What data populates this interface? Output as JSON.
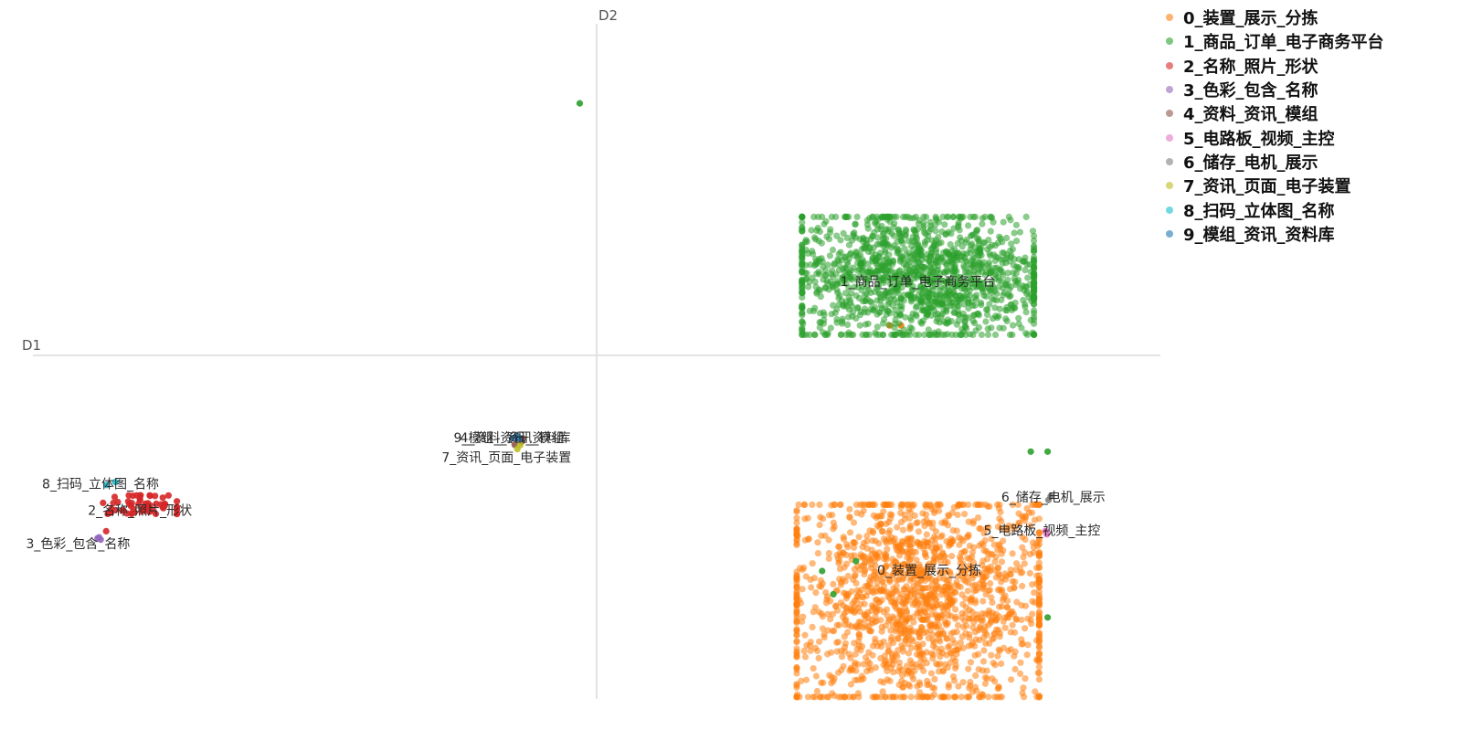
{
  "chart_data": {
    "type": "scatter",
    "xlabel": "D1",
    "ylabel": "D2",
    "xlim": [
      -1.0,
      1.0
    ],
    "ylim": [
      -1.0,
      1.0
    ],
    "grid": false,
    "legend_position": "top-right",
    "series": [
      {
        "name": "0_装置_展示_分拣",
        "color": "#ff7f0e",
        "label_at": [
          0.59,
          -0.65
        ],
        "cluster": {
          "center": [
            0.57,
            -0.74
          ],
          "spread": [
            0.23,
            0.31
          ],
          "count": 1600
        },
        "outliers": [
          [
            0.52,
            0.09
          ],
          [
            0.54,
            0.09
          ]
        ]
      },
      {
        "name": "1_商品_订单_电子商务平台",
        "color": "#2ca02c",
        "label_at": [
          0.57,
          0.22
        ],
        "cluster": {
          "center": [
            0.57,
            0.24
          ],
          "spread": [
            0.22,
            0.19
          ],
          "count": 1400
        },
        "outliers": [
          [
            -0.03,
            0.76
          ],
          [
            0.46,
            -0.62
          ],
          [
            0.4,
            -0.65
          ],
          [
            0.42,
            -0.72
          ],
          [
            0.77,
            -0.29
          ],
          [
            0.8,
            -0.29
          ],
          [
            0.8,
            -0.79
          ]
        ]
      },
      {
        "name": "2_名称_照片_形状",
        "color": "#d62728",
        "label_at": [
          -0.81,
          -0.47
        ],
        "cluster": {
          "center": [
            -0.81,
            -0.45
          ],
          "spread": [
            0.07,
            0.03
          ],
          "count": 60
        },
        "outliers": [
          [
            -0.87,
            -0.53
          ]
        ]
      },
      {
        "name": "3_色彩_包含_名称",
        "color": "#9467bd",
        "label_at": [
          -0.92,
          -0.57
        ],
        "cluster": {
          "center": [
            -0.88,
            -0.55
          ],
          "spread": [
            0.01,
            0.01
          ],
          "count": 3
        },
        "outliers": []
      },
      {
        "name": "4_资料_资讯_模组",
        "color": "#8c564b",
        "label_at": [
          -0.15,
          -0.25
        ],
        "cluster": {
          "center": [
            -0.14,
            -0.26
          ],
          "spread": [
            0.01,
            0.01
          ],
          "count": 3
        },
        "outliers": []
      },
      {
        "name": "5_电路板_视频_主控",
        "color": "#e377c2",
        "label_at": [
          0.79,
          -0.53
        ],
        "cluster": {
          "center": [
            0.8,
            -0.53
          ],
          "spread": [
            0.01,
            0.01
          ],
          "count": 3
        },
        "outliers": []
      },
      {
        "name": "6_储存_电机_展示",
        "color": "#7f7f7f",
        "label_at": [
          0.81,
          -0.43
        ],
        "cluster": {
          "center": [
            0.81,
            -0.43
          ],
          "spread": [
            0.01,
            0.01
          ],
          "count": 2
        },
        "outliers": []
      },
      {
        "name": "7_资讯_页面_电子装置",
        "color": "#bcbd22",
        "label_at": [
          -0.16,
          -0.31
        ],
        "cluster": {
          "center": [
            -0.14,
            -0.28
          ],
          "spread": [
            0.01,
            0.01
          ],
          "count": 2
        },
        "outliers": []
      },
      {
        "name": "8_扫码_立体图_名称",
        "color": "#17becf",
        "label_at": [
          -0.88,
          -0.39
        ],
        "cluster": {
          "center": [
            -0.86,
            -0.39
          ],
          "spread": [
            0.01,
            0.01
          ],
          "count": 2
        },
        "outliers": []
      },
      {
        "name": "9_模组_资讯_资料库",
        "color": "#1f77b4",
        "label_at": [
          -0.15,
          -0.25
        ],
        "cluster": {
          "center": [
            -0.14,
            -0.25
          ],
          "spread": [
            0.01,
            0.01
          ],
          "count": 3
        },
        "outliers": []
      }
    ]
  }
}
